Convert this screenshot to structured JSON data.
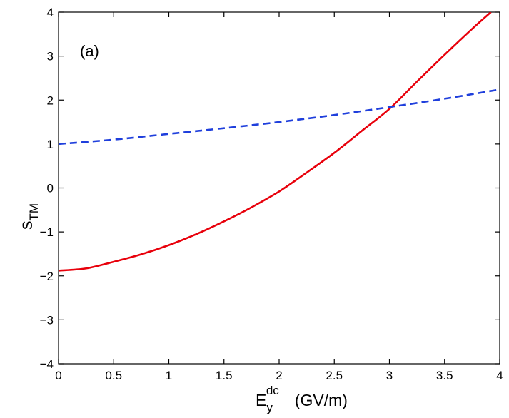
{
  "chart_data": {
    "type": "line",
    "panel_label": "(a)",
    "xlabel": {
      "base": "E",
      "sub": "y",
      "sup": "dc",
      "units": "(GV/m)"
    },
    "ylabel": {
      "base": "s",
      "sub": "TM"
    },
    "xlim": [
      0,
      4
    ],
    "ylim": [
      -4,
      4
    ],
    "xticks": [
      0,
      0.5,
      1,
      1.5,
      2,
      2.5,
      3,
      3.5,
      4
    ],
    "xtick_labels": [
      "0",
      "0.5",
      "1",
      "1.5",
      "2",
      "2.5",
      "3",
      "3.5",
      "4"
    ],
    "yticks": [
      -4,
      -3,
      -2,
      -1,
      0,
      1,
      2,
      3,
      4
    ],
    "ytick_labels": [
      "−4",
      "−3",
      "−2",
      "−1",
      "0",
      "1",
      "2",
      "3",
      "4"
    ],
    "grid": false,
    "series": [
      {
        "name": "solid red",
        "color": "#e8000b",
        "style": "solid",
        "x": [
          0,
          0.25,
          0.5,
          0.75,
          1,
          1.25,
          1.5,
          1.75,
          2,
          2.25,
          2.5,
          2.75,
          3,
          3.25,
          3.5,
          3.75,
          3.92
        ],
        "y": [
          -1.88,
          -1.83,
          -1.68,
          -1.51,
          -1.3,
          -1.05,
          -0.76,
          -0.44,
          -0.08,
          0.35,
          0.8,
          1.3,
          1.8,
          2.42,
          3.03,
          3.62,
          4.0
        ]
      },
      {
        "name": "dashed blue",
        "color": "#1f3fdc",
        "style": "dashed",
        "x": [
          0,
          0.5,
          1,
          1.5,
          2,
          2.5,
          3,
          3.5,
          4
        ],
        "y": [
          1.0,
          1.1,
          1.23,
          1.36,
          1.5,
          1.66,
          1.84,
          2.03,
          2.24
        ]
      }
    ]
  }
}
